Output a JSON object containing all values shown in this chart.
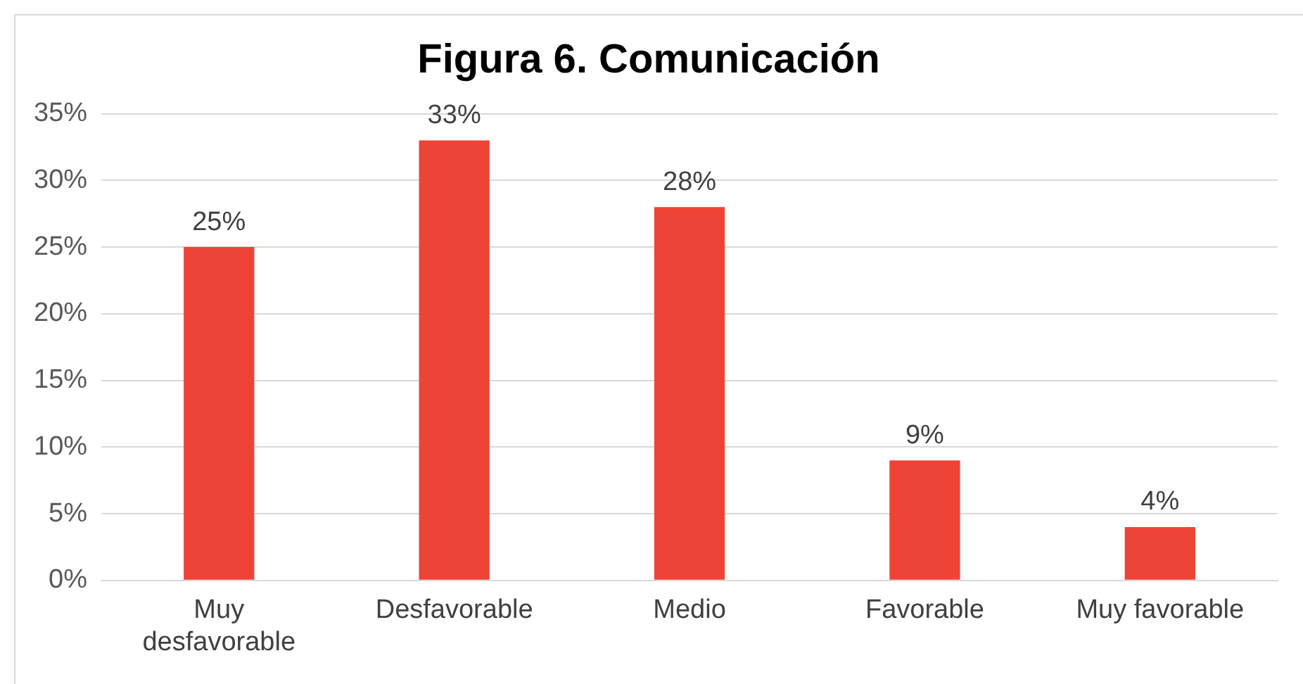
{
  "chart_data": {
    "type": "bar",
    "title": "Figura 6. Comunicación",
    "categories": [
      "Muy desfavorable",
      "Desfavorable",
      "Medio",
      "Favorable",
      "Muy favorable"
    ],
    "values": [
      25,
      33,
      28,
      9,
      4
    ],
    "value_labels": [
      "25%",
      "33%",
      "28%",
      "9%",
      "4%"
    ],
    "color": "#ee4438",
    "ylim": [
      0,
      35
    ],
    "yticks": [
      {
        "value": 0,
        "label": "0%"
      },
      {
        "value": 5,
        "label": "5%"
      },
      {
        "value": 10,
        "label": "10%"
      },
      {
        "value": 15,
        "label": "15%"
      },
      {
        "value": 20,
        "label": "20%"
      },
      {
        "value": 25,
        "label": "25%"
      },
      {
        "value": 30,
        "label": "30%"
      },
      {
        "value": 35,
        "label": "35%"
      }
    ],
    "grid": "y"
  }
}
